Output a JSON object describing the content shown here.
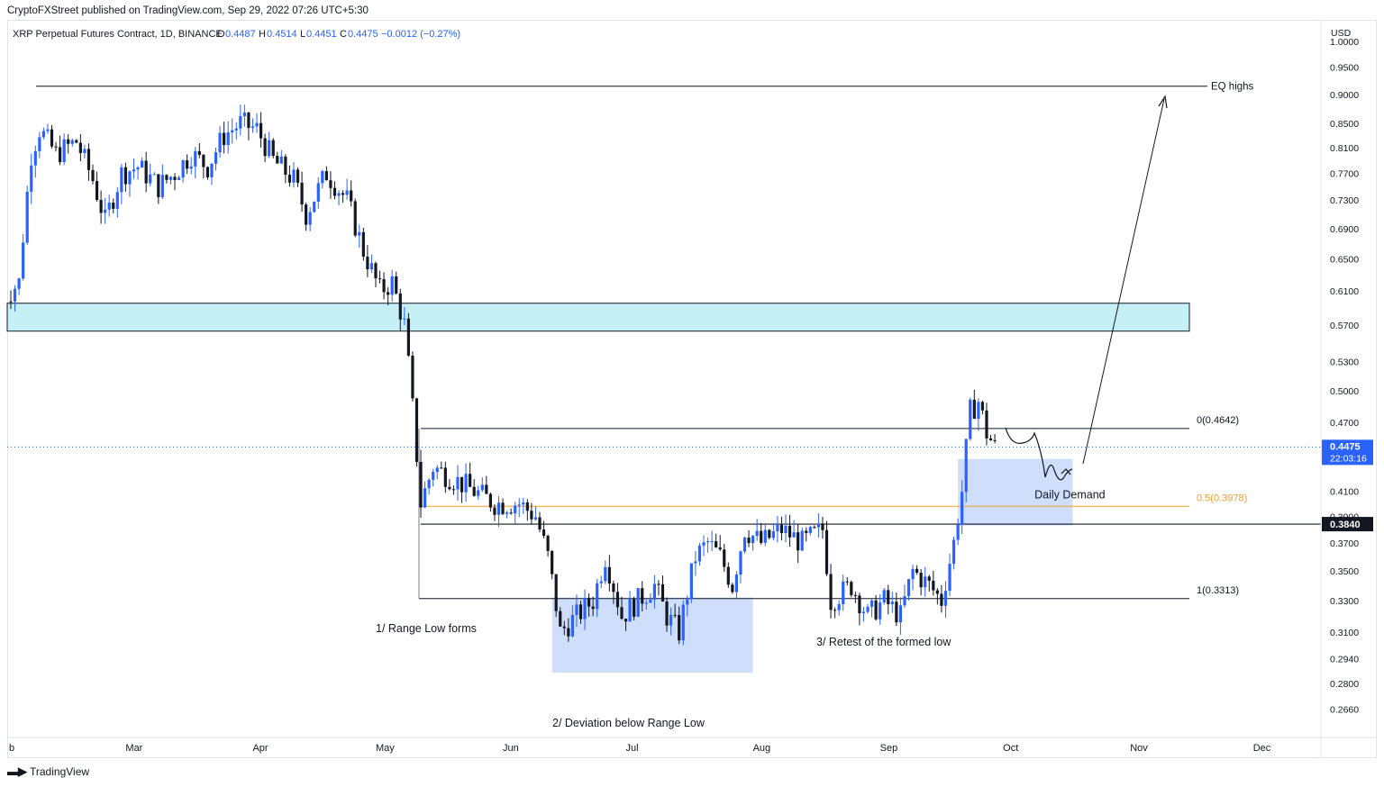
{
  "header": {
    "publish_text": "CryptoFXStreet published on TradingView.com, Sep 29, 2022 07:26 UTC+5:30",
    "symbol": "XRP Perpetual Futures Contract, 1D, BINANCE",
    "o_label": "O",
    "o_value": "0.4487",
    "h_label": "H",
    "h_value": "0.4514",
    "l_label": "L",
    "l_value": "0.4451",
    "c_label": "C",
    "c_value": "0.4475",
    "change": "−0.0012 (−0.27%)"
  },
  "colors": {
    "up": "#2962ff",
    "down": "#131722",
    "supply_zone": "#b2ebf2",
    "demand_zone": "#bbd0fa",
    "fib_mid": "#f59d2a",
    "line": "#131722"
  },
  "chart_data": {
    "type": "candlestick",
    "currency_label": "USD",
    "yscale": "log",
    "ylim": [
      0.252,
      1.04
    ],
    "y_ticks": [
      "1.0000",
      "0.9500",
      "0.9000",
      "0.8500",
      "0.8100",
      "0.7700",
      "0.7300",
      "0.6900",
      "0.6500",
      "0.6100",
      "0.5700",
      "0.5300",
      "0.5000",
      "0.4700",
      "0.4100",
      "0.3900",
      "0.3700",
      "0.3500",
      "0.3300",
      "0.3100",
      "0.2940",
      "0.2800",
      "0.2660"
    ],
    "x_ticks": [
      {
        "label": "b",
        "date": "2022-02-01"
      },
      {
        "label": "Mar",
        "date": "2022-03-01"
      },
      {
        "label": "Apr",
        "date": "2022-04-01"
      },
      {
        "label": "May",
        "date": "2022-05-01"
      },
      {
        "label": "Jun",
        "date": "2022-06-01"
      },
      {
        "label": "Jul",
        "date": "2022-07-01"
      },
      {
        "label": "Aug",
        "date": "2022-08-01"
      },
      {
        "label": "Sep",
        "date": "2022-09-01"
      },
      {
        "label": "Oct",
        "date": "2022-10-01"
      },
      {
        "label": "Nov",
        "date": "2022-11-01"
      },
      {
        "label": "Dec",
        "date": "2022-12-01"
      }
    ],
    "xlim": [
      "2022-02-01",
      "2022-12-31"
    ],
    "price_anchors": [
      [
        "2022-01-30",
        0.6
      ],
      [
        "2022-02-03",
        0.62
      ],
      [
        "2022-02-06",
        0.8
      ],
      [
        "2022-02-08",
        0.84
      ],
      [
        "2022-02-12",
        0.8
      ],
      [
        "2022-02-17",
        0.82
      ],
      [
        "2022-02-21",
        0.76
      ],
      [
        "2022-02-24",
        0.7
      ],
      [
        "2022-02-28",
        0.77
      ],
      [
        "2022-03-04",
        0.78
      ],
      [
        "2022-03-09",
        0.75
      ],
      [
        "2022-03-13",
        0.77
      ],
      [
        "2022-03-17",
        0.8
      ],
      [
        "2022-03-21",
        0.78
      ],
      [
        "2022-03-25",
        0.83
      ],
      [
        "2022-03-29",
        0.85
      ],
      [
        "2022-04-02",
        0.84
      ],
      [
        "2022-04-06",
        0.79
      ],
      [
        "2022-04-11",
        0.76
      ],
      [
        "2022-04-14",
        0.71
      ],
      [
        "2022-04-19",
        0.77
      ],
      [
        "2022-04-24",
        0.73
      ],
      [
        "2022-04-28",
        0.66
      ],
      [
        "2022-05-02",
        0.61
      ],
      [
        "2022-05-05",
        0.62
      ],
      [
        "2022-05-08",
        0.57
      ],
      [
        "2022-05-11",
        0.44
      ],
      [
        "2022-05-12",
        0.4
      ],
      [
        "2022-05-15",
        0.43
      ],
      [
        "2022-05-20",
        0.42
      ],
      [
        "2022-05-25",
        0.41
      ],
      [
        "2022-05-30",
        0.4
      ],
      [
        "2022-06-05",
        0.4
      ],
      [
        "2022-06-09",
        0.39
      ],
      [
        "2022-06-12",
        0.36
      ],
      [
        "2022-06-15",
        0.31
      ],
      [
        "2022-06-19",
        0.32
      ],
      [
        "2022-06-23",
        0.33
      ],
      [
        "2022-06-26",
        0.36
      ],
      [
        "2022-06-30",
        0.32
      ],
      [
        "2022-07-04",
        0.33
      ],
      [
        "2022-07-08",
        0.34
      ],
      [
        "2022-07-11",
        0.32
      ],
      [
        "2022-07-14",
        0.31
      ],
      [
        "2022-07-18",
        0.36
      ],
      [
        "2022-07-21",
        0.37
      ],
      [
        "2022-07-24",
        0.36
      ],
      [
        "2022-07-27",
        0.34
      ],
      [
        "2022-07-30",
        0.38
      ],
      [
        "2022-08-03",
        0.37
      ],
      [
        "2022-08-08",
        0.38
      ],
      [
        "2022-08-13",
        0.37
      ],
      [
        "2022-08-18",
        0.38
      ],
      [
        "2022-08-20",
        0.33
      ],
      [
        "2022-08-25",
        0.34
      ],
      [
        "2022-08-29",
        0.32
      ],
      [
        "2022-09-02",
        0.33
      ],
      [
        "2022-09-06",
        0.32
      ],
      [
        "2022-09-09",
        0.35
      ],
      [
        "2022-09-13",
        0.34
      ],
      [
        "2022-09-16",
        0.33
      ],
      [
        "2022-09-19",
        0.37
      ],
      [
        "2022-09-21",
        0.41
      ],
      [
        "2022-09-23",
        0.48
      ],
      [
        "2022-09-25",
        0.49
      ],
      [
        "2022-09-27",
        0.46
      ],
      [
        "2022-09-29",
        0.4475
      ]
    ],
    "levels": [
      {
        "label": "EQ highs",
        "value": 0.915
      },
      {
        "label": "0(0.4642)",
        "value": 0.4642
      },
      {
        "label": "0.5(0.3978)",
        "value": 0.3978
      },
      {
        "label": "1(0.3313)",
        "value": 0.3313
      },
      {
        "label": "0.3840",
        "value": 0.384
      }
    ],
    "zones": [
      {
        "name": "supply",
        "from": "2022-02-01",
        "to": "2022-11-24",
        "low": 0.563,
        "high": 0.595
      },
      {
        "name": "deviation",
        "from": "2022-06-13",
        "to": "2022-08-01",
        "low": 0.286,
        "high": 0.332
      },
      {
        "name": "daily-demand",
        "label": "Daily Demand",
        "from": "2022-09-20",
        "to": "2022-10-18",
        "low": 0.383,
        "high": 0.437
      }
    ],
    "annotations": [
      "1/ Range Low forms",
      "2/ Deviation below Range Low",
      "3/ Retest of the formed low"
    ],
    "last_price": "0.4475",
    "countdown": "22:03:16",
    "grid": false,
    "legend": "none"
  },
  "footer": {
    "brand": "TradingView"
  }
}
